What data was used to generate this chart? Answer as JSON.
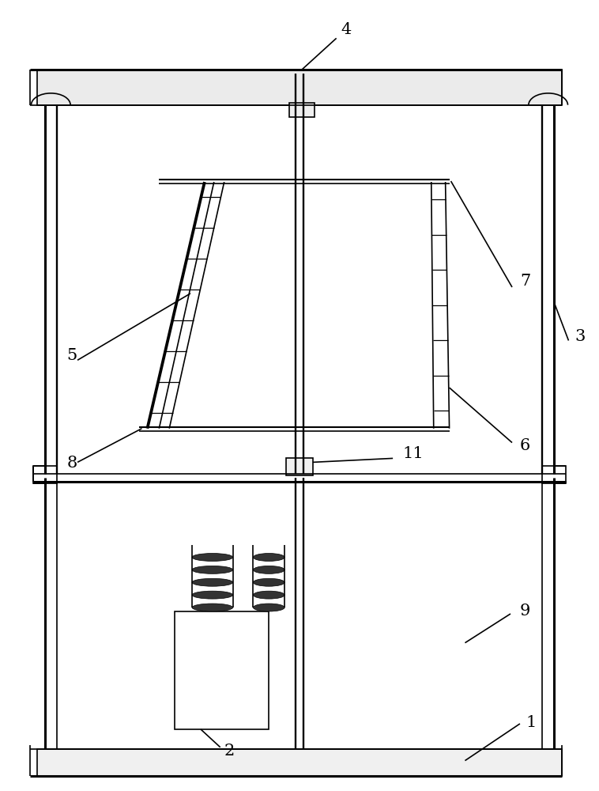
{
  "bg_color": "#ffffff",
  "lc": "#000000",
  "lw": 1.2,
  "tlw": 2.2,
  "fig_w": 7.58,
  "fig_h": 10.0
}
